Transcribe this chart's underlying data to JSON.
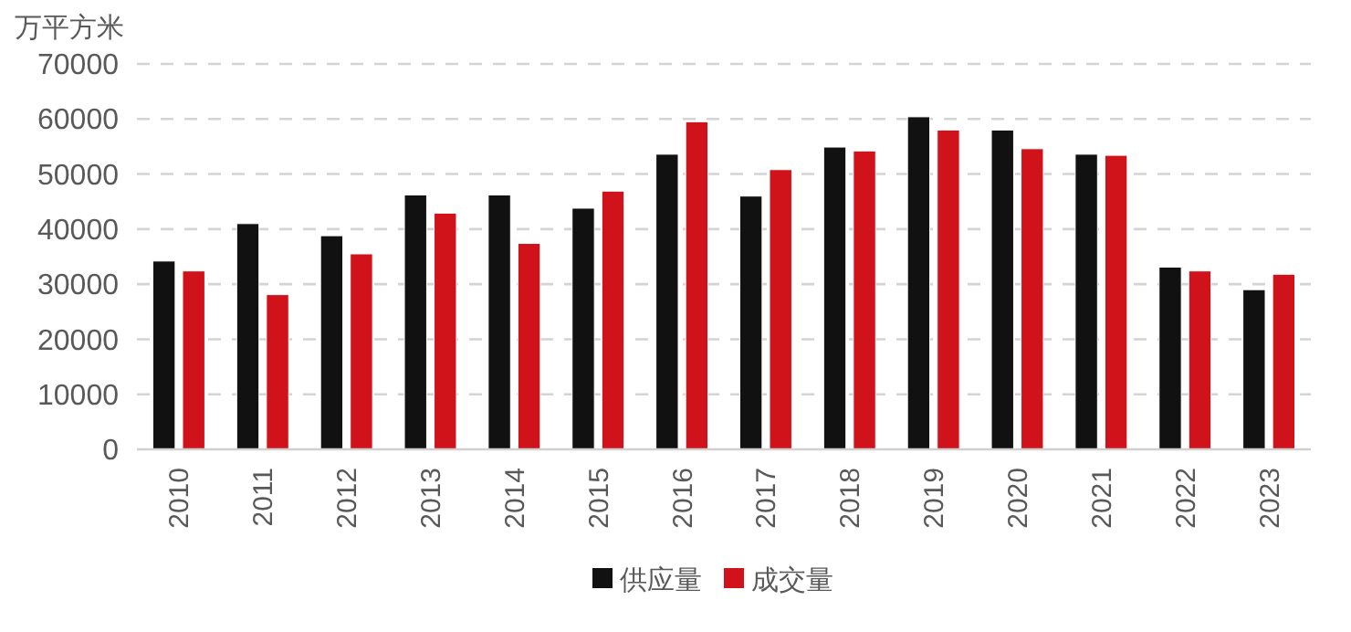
{
  "chart_data": {
    "type": "bar",
    "ylabel": "万平方米",
    "categories": [
      "2010",
      "2011",
      "2012",
      "2013",
      "2014",
      "2015",
      "2016",
      "2017",
      "2018",
      "2019",
      "2020",
      "2021",
      "2022",
      "2023"
    ],
    "series": [
      {
        "name": "供应量",
        "color": "#111111",
        "values": [
          34200,
          41000,
          38800,
          46200,
          46200,
          43800,
          53600,
          46000,
          54900,
          60400,
          58000,
          53600,
          33100,
          29000
        ]
      },
      {
        "name": "成交量",
        "color": "#d0121b",
        "values": [
          32400,
          28100,
          35500,
          42900,
          37400,
          46900,
          59500,
          50800,
          54200,
          58000,
          54600,
          53400,
          32400,
          31800
        ]
      }
    ],
    "ylim": [
      0,
      70000
    ],
    "yticks": [
      0,
      10000,
      20000,
      30000,
      40000,
      50000,
      60000,
      70000
    ],
    "grid": "y",
    "legend": "bottom"
  }
}
